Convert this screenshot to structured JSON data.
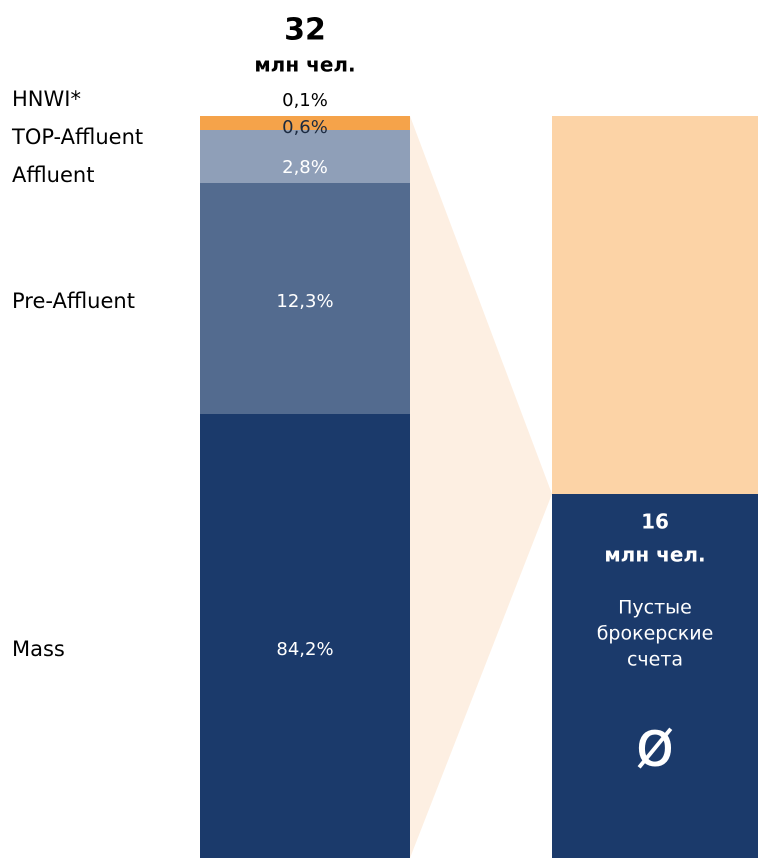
{
  "left_bar": {
    "total": "32",
    "unit": "млн чел.",
    "segments": [
      {
        "name": "HNWI*",
        "label": "0,1%"
      },
      {
        "name": "TOP-Affluent",
        "label": "0,6%"
      },
      {
        "name": "Affluent",
        "label": "2,8%"
      },
      {
        "name": "Pre-Affluent",
        "label": "12,3%"
      },
      {
        "name": "Mass",
        "label": "84,2%"
      }
    ]
  },
  "right_bar": {
    "total": "16",
    "unit": "млн чел.",
    "caption": [
      "Пустые",
      "брокерские",
      "счета"
    ],
    "symbol": "ø"
  }
}
